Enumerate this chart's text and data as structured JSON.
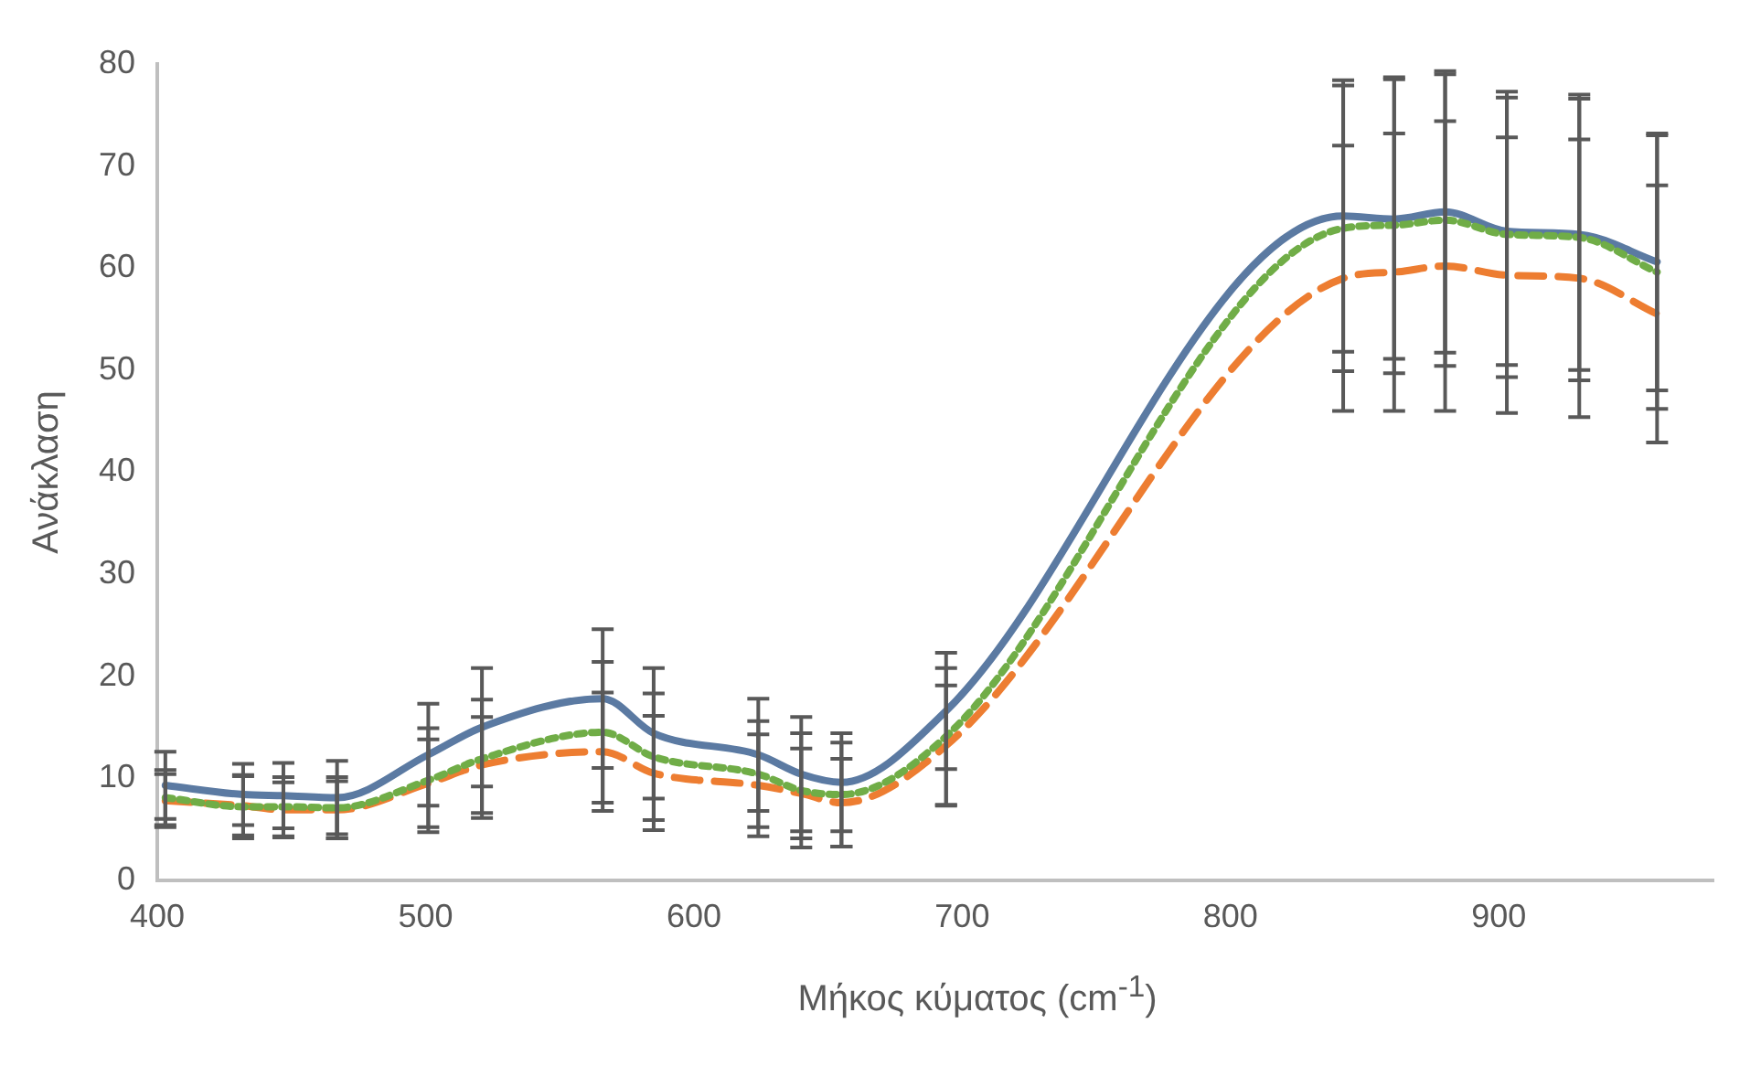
{
  "chart_data": {
    "type": "line",
    "xlabel": "Μήκος κύματος (cm$^{-1}$)",
    "ylabel": "Ανάκλαση",
    "x": [
      403,
      432,
      447,
      467,
      501,
      521,
      566,
      585,
      624,
      640,
      655,
      694,
      842,
      861,
      880,
      903,
      930,
      959
    ],
    "xlim": [
      400,
      980
    ],
    "xticks": [
      400,
      500,
      600,
      700,
      800,
      900
    ],
    "ylim": [
      0,
      80
    ],
    "yticks": [
      0,
      10,
      20,
      30,
      40,
      50,
      60,
      70,
      80
    ],
    "grid": false,
    "legend": false,
    "marker": "none",
    "series": [
      {
        "color": "#5b7aa2",
        "line_style": "solid",
        "values": [
          9.3,
          8.4,
          8.3,
          8.1,
          12.3,
          15.0,
          17.8,
          14.4,
          12.3,
          10.4,
          9.6,
          16.6,
          65.1,
          64.8,
          65.5,
          63.6,
          63.3,
          60.6
        ],
        "errors": [
          3.3,
          3.0,
          3.2,
          3.6,
          5.0,
          5.8,
          6.8,
          6.4,
          5.5,
          5.6,
          4.8,
          5.7,
          13.3,
          13.7,
          13.8,
          13.1,
          13.3,
          12.6
        ]
      },
      {
        "color": "#ed7d31",
        "line_style": "dashed",
        "values": [
          7.8,
          7.3,
          6.9,
          6.9,
          9.5,
          11.3,
          12.6,
          10.5,
          9.3,
          8.5,
          7.6,
          13.2,
          59.0,
          59.6,
          60.2,
          59.3,
          59.0,
          55.5
        ],
        "errors": [
          2.6,
          2.9,
          2.7,
          2.8,
          4.3,
          4.7,
          5.8,
          5.6,
          5.0,
          4.4,
          4.3,
          5.9,
          13.0,
          13.6,
          14.2,
          13.5,
          13.6,
          12.6
        ]
      },
      {
        "color": "#70ad47",
        "line_style": "dotted",
        "values": [
          8.1,
          7.2,
          7.2,
          7.1,
          9.8,
          11.9,
          14.5,
          12.1,
          10.4,
          8.8,
          8.4,
          14.1,
          63.9,
          64.2,
          64.7,
          63.3,
          63.0,
          59.6
        ],
        "errors": [
          2.7,
          3.1,
          2.9,
          3.0,
          5.1,
          5.8,
          6.9,
          6.2,
          5.2,
          5.6,
          5.1,
          6.7,
          14.0,
          14.5,
          14.3,
          14.0,
          14.0,
          13.4
        ]
      }
    ]
  }
}
